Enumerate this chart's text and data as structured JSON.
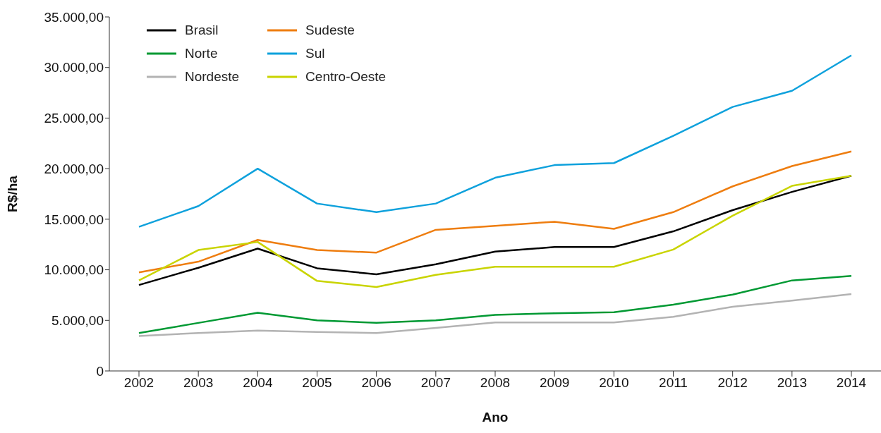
{
  "chart_data": {
    "type": "line",
    "xlabel": "Ano",
    "ylabel": "R$/ha",
    "categories": [
      "2002",
      "2003",
      "2004",
      "2005",
      "2006",
      "2007",
      "2008",
      "2009",
      "2010",
      "2011",
      "2012",
      "2013",
      "2014"
    ],
    "series": [
      {
        "name": "Brasil",
        "color": "#000000",
        "values": [
          8500,
          10200,
          12100,
          10150,
          9550,
          10550,
          11800,
          12250,
          12250,
          13800,
          15900,
          17700,
          19300
        ]
      },
      {
        "name": "Norte",
        "color": "#009933",
        "values": [
          3750,
          4750,
          5750,
          5000,
          4750,
          5000,
          5550,
          5700,
          5800,
          6550,
          7550,
          8950,
          9400
        ]
      },
      {
        "name": "Nordeste",
        "color": "#b3b3b3",
        "values": [
          3450,
          3750,
          4000,
          3850,
          3750,
          4250,
          4800,
          4800,
          4800,
          5350,
          6350,
          6950,
          7600
        ]
      },
      {
        "name": "Sudeste",
        "color": "#ee7d0f",
        "values": [
          9750,
          10800,
          12950,
          11950,
          11700,
          13950,
          14350,
          14750,
          14050,
          15700,
          18250,
          20250,
          21700
        ]
      },
      {
        "name": "Sul",
        "color": "#0ea1dc",
        "values": [
          14250,
          16300,
          20000,
          16550,
          15700,
          16550,
          19100,
          20350,
          20550,
          23250,
          26100,
          27700,
          31200
        ]
      },
      {
        "name": "Centro-Oeste",
        "color": "#c9d400",
        "values": [
          8950,
          11950,
          12750,
          8900,
          8300,
          9500,
          10300,
          10300,
          10300,
          12000,
          15350,
          18300,
          19300
        ]
      }
    ],
    "ylim": [
      0,
      35000
    ],
    "yticks": [
      0,
      {
        "value": 5000,
        "label": "5.000,00"
      },
      {
        "value": 10000,
        "label": "10.000,00"
      },
      {
        "value": 15000,
        "label": "15.000,00"
      },
      {
        "value": 20000,
        "label": "20.000,00"
      },
      {
        "value": 25000,
        "label": "25.000,00"
      },
      {
        "value": 30000,
        "label": "30.000,00"
      },
      {
        "value": 35000,
        "label": "35.000,00"
      }
    ],
    "grid": false,
    "legend": "top left",
    "marker": "none",
    "line_style": "solid"
  }
}
